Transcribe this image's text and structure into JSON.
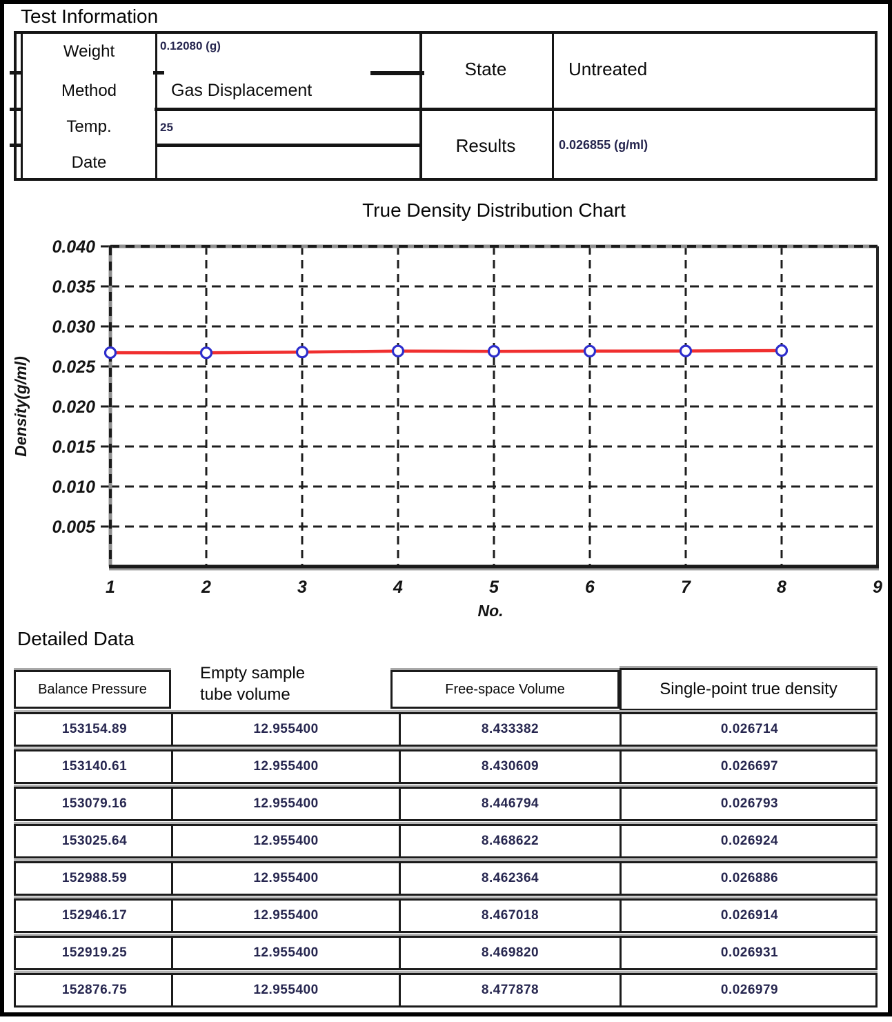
{
  "page": {
    "section1_title": "Test Information",
    "section2_title": "Detailed Data"
  },
  "test_info": {
    "rows": [
      {
        "label": "Weight",
        "value": "0.12080 (g)"
      },
      {
        "label": "Method",
        "value": "Gas Displacement"
      },
      {
        "label": "Temp.",
        "value": "25"
      },
      {
        "label": "Date",
        "value": ""
      }
    ],
    "state": {
      "label": "State",
      "value": "Untreated"
    },
    "results": {
      "label": "Results",
      "value": "0.026855 (g/ml)"
    }
  },
  "chart_data": {
    "type": "line",
    "title": "True Density Distribution Chart",
    "xlabel": "No.",
    "ylabel": "Density(g/ml)",
    "x": [
      1,
      2,
      3,
      4,
      5,
      6,
      7,
      8
    ],
    "y": [
      0.026714,
      0.026697,
      0.026793,
      0.026924,
      0.026886,
      0.026914,
      0.026931,
      0.026979
    ],
    "xlim": [
      1,
      9
    ],
    "ylim": [
      0,
      0.04
    ],
    "xticks": [
      1,
      2,
      3,
      4,
      5,
      6,
      7,
      8,
      9
    ],
    "yticks": [
      0.005,
      0.01,
      0.015,
      0.02,
      0.025,
      0.03,
      0.035,
      0.04
    ],
    "ytick_labels": [
      "0.005",
      "0.010",
      "0.015",
      "0.020",
      "0.025",
      "0.030",
      "0.035",
      "0.040"
    ],
    "grid": true,
    "line_color": "#f02f2f",
    "marker_color": "#2d2dcc"
  },
  "detailed_table": {
    "headers": [
      "Balance Pressure",
      "Empty sample tube volume",
      "Free-space Volume",
      "Single-point true density"
    ],
    "rows": [
      [
        "153154.89",
        "12.955400",
        "8.433382",
        "0.026714"
      ],
      [
        "153140.61",
        "12.955400",
        "8.430609",
        "0.026697"
      ],
      [
        "153079.16",
        "12.955400",
        "8.446794",
        "0.026793"
      ],
      [
        "153025.64",
        "12.955400",
        "8.468622",
        "0.026924"
      ],
      [
        "152988.59",
        "12.955400",
        "8.462364",
        "0.026886"
      ],
      [
        "152946.17",
        "12.955400",
        "8.467018",
        "0.026914"
      ],
      [
        "152919.25",
        "12.955400",
        "8.469820",
        "0.026931"
      ],
      [
        "152876.75",
        "12.955400",
        "8.477878",
        "0.026979"
      ]
    ]
  }
}
